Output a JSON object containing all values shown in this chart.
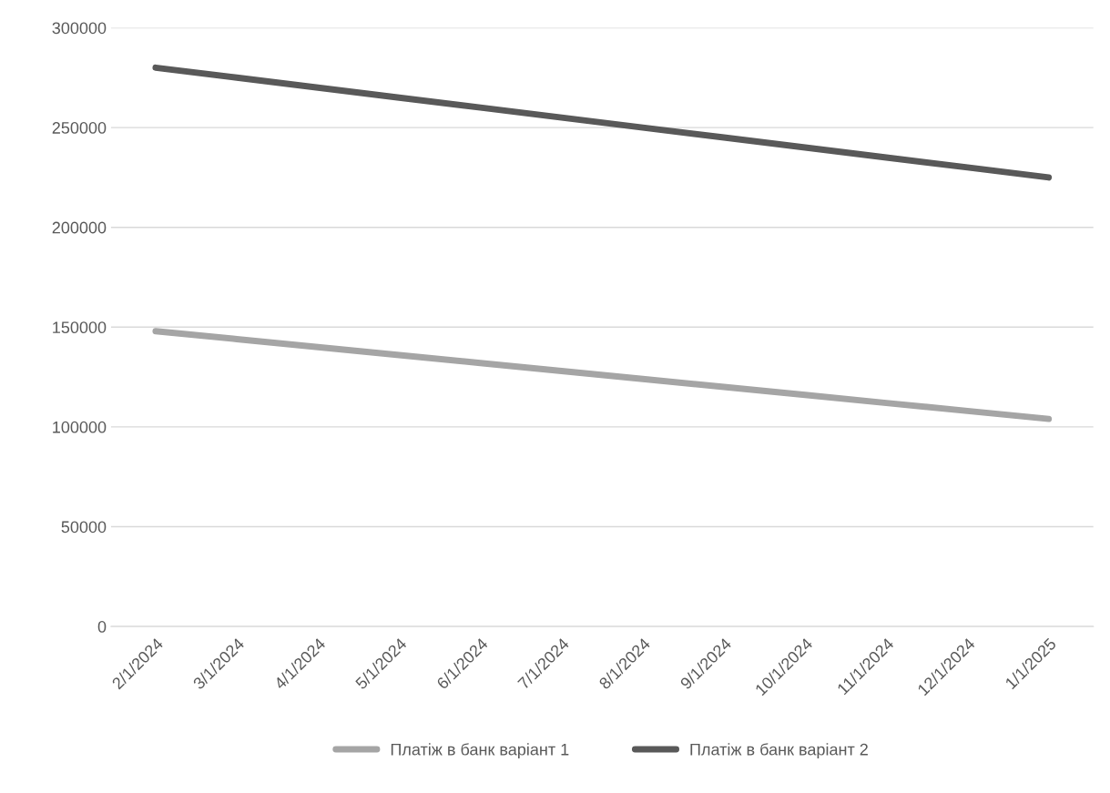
{
  "chart_data": {
    "type": "line",
    "categories": [
      "2/1/2024",
      "3/1/2024",
      "4/1/2024",
      "5/1/2024",
      "6/1/2024",
      "7/1/2024",
      "8/1/2024",
      "9/1/2024",
      "10/1/2024",
      "11/1/2024",
      "12/1/2024",
      "1/1/2025"
    ],
    "series": [
      {
        "name": "Платіж в банк варіант 1",
        "color": "#a5a5a5",
        "values": [
          148000,
          144000,
          140000,
          136000,
          132000,
          128000,
          124000,
          120000,
          116000,
          112000,
          108000,
          104000
        ]
      },
      {
        "name": "Платіж в банк варіант 2",
        "color": "#595959",
        "values": [
          280000,
          275000,
          270000,
          265000,
          260000,
          255000,
          250000,
          245000,
          240000,
          235000,
          230000,
          225000
        ]
      }
    ],
    "ylim": [
      0,
      300000
    ],
    "yticks": [
      0,
      50000,
      100000,
      150000,
      200000,
      250000,
      300000
    ],
    "grid": "y",
    "legend": "bottom",
    "marker": "none",
    "line_style": "solid"
  }
}
